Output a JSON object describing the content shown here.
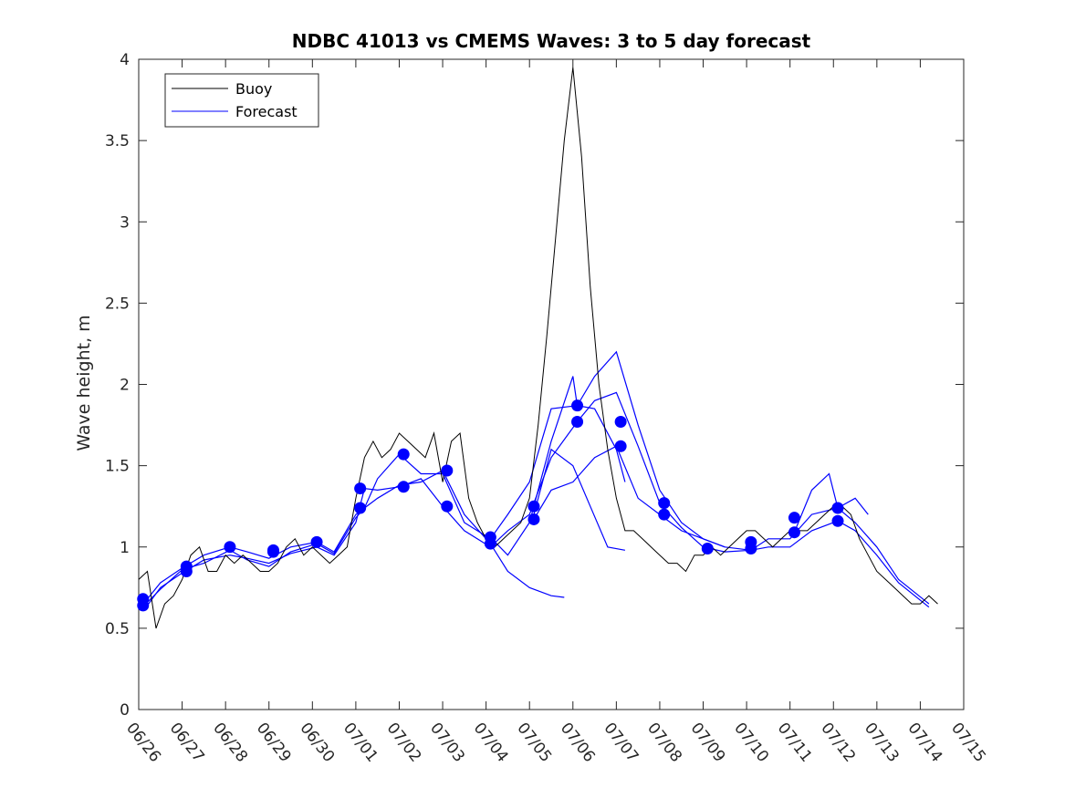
{
  "chart_data": {
    "type": "line",
    "title": "NDBC 41013 vs CMEMS Waves: 3 to 5 day forecast",
    "xlabel": "",
    "ylabel": "Wave height, m",
    "xlim": [
      0,
      19
    ],
    "ylim": [
      0,
      4
    ],
    "x_tick_labels": [
      "06/26",
      "06/27",
      "06/28",
      "06/29",
      "06/30",
      "07/01",
      "07/02",
      "07/03",
      "07/04",
      "07/05",
      "07/06",
      "07/07",
      "07/08",
      "07/09",
      "07/10",
      "07/11",
      "07/12",
      "07/13",
      "07/14",
      "07/15"
    ],
    "y_ticks": [
      0,
      0.5,
      1,
      1.5,
      2,
      2.5,
      3,
      3.5,
      4
    ],
    "y_tick_labels": [
      "0",
      "0.5",
      "1",
      "1.5",
      "2",
      "2.5",
      "3",
      "3.5",
      "4"
    ],
    "grid": false,
    "legend_position": "top-left",
    "legend": [
      {
        "name": "Buoy",
        "color": "#000000"
      },
      {
        "name": "Forecast",
        "color": "#0000ff"
      }
    ],
    "buoy": {
      "name": "Buoy",
      "color": "#000000",
      "x": [
        0,
        0.2,
        0.4,
        0.6,
        0.8,
        1.0,
        1.2,
        1.4,
        1.6,
        1.8,
        2.0,
        2.2,
        2.4,
        2.6,
        2.8,
        3.0,
        3.2,
        3.4,
        3.6,
        3.8,
        4.0,
        4.2,
        4.4,
        4.6,
        4.8,
        5.0,
        5.2,
        5.4,
        5.6,
        5.8,
        6.0,
        6.2,
        6.4,
        6.6,
        6.8,
        7.0,
        7.2,
        7.4,
        7.6,
        7.8,
        8.0,
        8.2,
        8.4,
        8.6,
        8.8,
        9.0,
        9.2,
        9.4,
        9.6,
        9.8,
        10.0,
        10.2,
        10.4,
        10.6,
        10.8,
        11.0,
        11.2,
        11.4,
        11.6,
        11.8,
        12.0,
        12.2,
        12.4,
        12.6,
        12.8,
        13.0,
        13.2,
        13.4,
        13.6,
        13.8,
        14.0,
        14.2,
        14.4,
        14.6,
        14.8,
        15.0,
        15.2,
        15.4,
        15.6,
        15.8,
        16.0,
        16.2,
        16.4,
        16.6,
        16.8,
        17.0,
        17.2,
        17.4,
        17.6,
        17.8,
        18.0,
        18.2,
        18.4
      ],
      "y": [
        0.8,
        0.85,
        0.5,
        0.65,
        0.7,
        0.8,
        0.95,
        1.0,
        0.85,
        0.85,
        0.95,
        0.9,
        0.95,
        0.9,
        0.85,
        0.85,
        0.9,
        1.0,
        1.05,
        0.95,
        1.0,
        0.95,
        0.9,
        0.95,
        1.0,
        1.3,
        1.55,
        1.65,
        1.55,
        1.6,
        1.7,
        1.65,
        1.6,
        1.55,
        1.7,
        1.4,
        1.65,
        1.7,
        1.3,
        1.15,
        1.05,
        1.0,
        1.05,
        1.1,
        1.15,
        1.3,
        1.75,
        2.3,
        2.9,
        3.5,
        3.95,
        3.4,
        2.6,
        2.0,
        1.6,
        1.3,
        1.1,
        1.1,
        1.05,
        1.0,
        0.95,
        0.9,
        0.9,
        0.85,
        0.95,
        0.95,
        1.0,
        0.95,
        1.0,
        1.05,
        1.1,
        1.1,
        1.05,
        1.0,
        1.05,
        1.1,
        1.1,
        1.1,
        1.15,
        1.2,
        1.25,
        1.25,
        1.2,
        1.05,
        0.95,
        0.85,
        0.8,
        0.75,
        0.7,
        0.65,
        0.65,
        0.7,
        0.65
      ]
    },
    "series": [
      {
        "color": "#0000ff",
        "x": [
          0.2,
          0.5,
          1.0,
          1.5,
          2.1,
          2.5,
          3.0,
          3.5,
          4.1,
          4.5,
          5.0,
          5.2,
          5.5,
          6.0,
          6.5,
          7.0,
          7.5,
          8.1,
          8.5,
          9.0,
          9.5,
          10.1,
          10.5,
          11.0,
          11.5,
          12.0,
          12.5,
          13.0,
          13.5,
          14.1,
          14.5,
          15.0,
          15.5,
          16.1,
          16.5,
          17.0,
          17.5,
          18.2
        ],
        "y": [
          0.68,
          0.78,
          0.87,
          0.95,
          1.0,
          0.97,
          0.93,
          1.0,
          1.03,
          0.97,
          1.2,
          1.24,
          1.42,
          1.57,
          1.45,
          1.45,
          1.15,
          1.05,
          1.2,
          1.4,
          1.85,
          1.87,
          2.05,
          2.2,
          1.75,
          1.35,
          1.15,
          1.05,
          1.0,
          0.98,
          1.05,
          1.05,
          1.2,
          1.24,
          1.15,
          1.0,
          0.8,
          0.65
        ]
      },
      {
        "color": "#0000ff",
        "x": [
          0.2,
          0.5,
          1.0,
          1.5,
          2.1,
          2.5,
          3.0,
          3.5,
          4.1,
          4.5,
          5.0,
          5.2,
          5.5,
          6.0,
          6.5,
          7.0,
          7.5,
          8.1,
          8.5,
          9.0,
          9.5,
          10.1,
          10.5,
          11.0,
          11.5,
          12.0,
          12.5,
          13.0,
          13.5,
          14.1,
          14.5,
          15.0,
          15.5,
          16.1,
          16.5,
          17.0,
          17.5,
          18.2
        ],
        "y": [
          0.64,
          0.75,
          0.84,
          0.92,
          0.95,
          0.93,
          0.9,
          0.96,
          1.0,
          0.95,
          1.15,
          1.36,
          1.35,
          1.37,
          1.42,
          1.25,
          1.1,
          1.0,
          1.1,
          1.2,
          1.55,
          1.77,
          1.9,
          1.95,
          1.62,
          1.27,
          1.12,
          1.0,
          0.97,
          0.98,
          1.0,
          1.0,
          1.1,
          1.16,
          1.1,
          0.95,
          0.78,
          0.63
        ]
      },
      {
        "color": "#0000ff",
        "x": [
          0.2,
          0.5,
          1.0,
          1.5,
          2.1,
          2.5,
          3.0,
          3.5,
          4.1,
          4.5,
          5.0,
          5.2,
          5.5,
          6.0,
          6.5,
          7.0,
          7.5,
          8.1,
          8.5,
          9.0,
          9.5,
          9.8
        ],
        "y": [
          0.66,
          0.74,
          0.86,
          0.9,
          0.98,
          0.92,
          0.88,
          0.97,
          1.02,
          0.96,
          1.18,
          1.24,
          1.3,
          1.38,
          1.4,
          1.47,
          1.2,
          1.02,
          0.85,
          0.75,
          0.7,
          0.69
        ]
      },
      {
        "color": "#0000ff",
        "x": [
          8.1,
          8.5,
          9.0,
          9.5,
          10.0,
          10.1,
          10.5,
          11.0,
          11.2
        ],
        "y": [
          1.06,
          0.95,
          1.15,
          1.65,
          2.05,
          1.87,
          1.85,
          1.6,
          1.4
        ]
      },
      {
        "color": "#0000ff",
        "x": [
          9.1,
          9.5,
          10.0,
          10.5,
          11.0,
          11.5,
          12.0,
          12.5,
          13.0,
          13.5
        ],
        "y": [
          1.17,
          1.35,
          1.4,
          1.55,
          1.62,
          1.3,
          1.2,
          1.1,
          1.05,
          1.0
        ]
      },
      {
        "color": "#0000ff",
        "x": [
          9.1,
          9.5,
          10.0,
          10.4,
          10.8,
          11.2
        ],
        "y": [
          1.2,
          1.6,
          1.5,
          1.25,
          1.0,
          0.98
        ]
      },
      {
        "color": "#0000ff",
        "x": [
          15.1,
          15.5,
          15.9,
          16.1,
          16.5,
          16.8
        ],
        "y": [
          1.09,
          1.35,
          1.45,
          1.24,
          1.3,
          1.2
        ]
      }
    ],
    "markers": {
      "color": "#0000ff",
      "points": [
        {
          "x": 0.1,
          "y": 0.68
        },
        {
          "x": 0.1,
          "y": 0.64
        },
        {
          "x": 1.1,
          "y": 0.88
        },
        {
          "x": 1.1,
          "y": 0.85
        },
        {
          "x": 2.1,
          "y": 1.0
        },
        {
          "x": 3.1,
          "y": 0.98
        },
        {
          "x": 3.1,
          "y": 0.97
        },
        {
          "x": 4.1,
          "y": 1.03
        },
        {
          "x": 5.1,
          "y": 1.36
        },
        {
          "x": 5.1,
          "y": 1.24
        },
        {
          "x": 6.1,
          "y": 1.57
        },
        {
          "x": 6.1,
          "y": 1.37
        },
        {
          "x": 7.1,
          "y": 1.47
        },
        {
          "x": 7.1,
          "y": 1.25
        },
        {
          "x": 8.1,
          "y": 1.06
        },
        {
          "x": 8.1,
          "y": 1.02
        },
        {
          "x": 9.1,
          "y": 1.25
        },
        {
          "x": 9.1,
          "y": 1.17
        },
        {
          "x": 10.1,
          "y": 1.87
        },
        {
          "x": 10.1,
          "y": 1.77
        },
        {
          "x": 11.1,
          "y": 1.77
        },
        {
          "x": 11.1,
          "y": 1.62
        },
        {
          "x": 12.1,
          "y": 1.27
        },
        {
          "x": 12.1,
          "y": 1.2
        },
        {
          "x": 13.1,
          "y": 0.99
        },
        {
          "x": 14.1,
          "y": 1.03
        },
        {
          "x": 14.1,
          "y": 0.99
        },
        {
          "x": 15.1,
          "y": 1.18
        },
        {
          "x": 15.1,
          "y": 1.09
        },
        {
          "x": 16.1,
          "y": 1.24
        },
        {
          "x": 16.1,
          "y": 1.16
        }
      ]
    }
  }
}
